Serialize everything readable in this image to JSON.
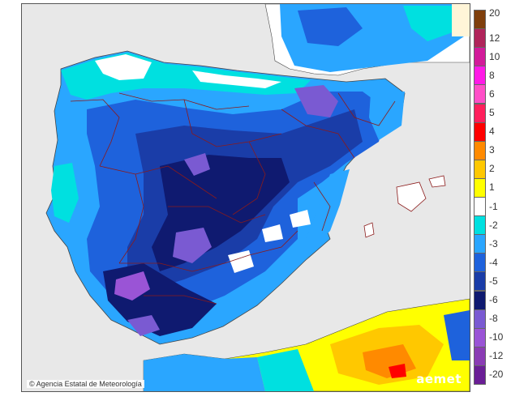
{
  "map": {
    "credit": "Agencia Estatal de Meteorología",
    "brand": "aemet",
    "copyright_symbol": "©"
  },
  "legend": {
    "items": [
      {
        "label": "20",
        "color": "#7f3f0c"
      },
      {
        "label": "12",
        "color": "#b0245a"
      },
      {
        "label": "10",
        "color": "#d21b9a"
      },
      {
        "label": "8",
        "color": "#ff19e6"
      },
      {
        "label": "6",
        "color": "#ff4fc8"
      },
      {
        "label": "5",
        "color": "#ff1f5c"
      },
      {
        "label": "4",
        "color": "#ff0000"
      },
      {
        "label": "3",
        "color": "#ff8a00"
      },
      {
        "label": "2",
        "color": "#ffc800"
      },
      {
        "label": "1",
        "color": "#ffff00"
      },
      {
        "label": "-1",
        "color": "#ffffff"
      },
      {
        "label": "-2",
        "color": "#00e0e0"
      },
      {
        "label": "-3",
        "color": "#2aa6ff"
      },
      {
        "label": "-4",
        "color": "#1e62dc"
      },
      {
        "label": "-5",
        "color": "#1a3da8"
      },
      {
        "label": "-6",
        "color": "#0f1a70"
      },
      {
        "label": "-8",
        "color": "#7a5ad2"
      },
      {
        "label": "-10",
        "color": "#9a54d6"
      },
      {
        "label": "-12",
        "color": "#8a3cb4"
      },
      {
        "label": "-20",
        "color": "#6a1e96"
      }
    ]
  },
  "colors": {
    "sea": "#e8e8e8",
    "border_lines": "#8b1a1a",
    "warm_light": "#ffff00",
    "warm_mid": "#ffc800",
    "warm_high": "#ff8a00",
    "warm_peak": "#ff0000"
  }
}
